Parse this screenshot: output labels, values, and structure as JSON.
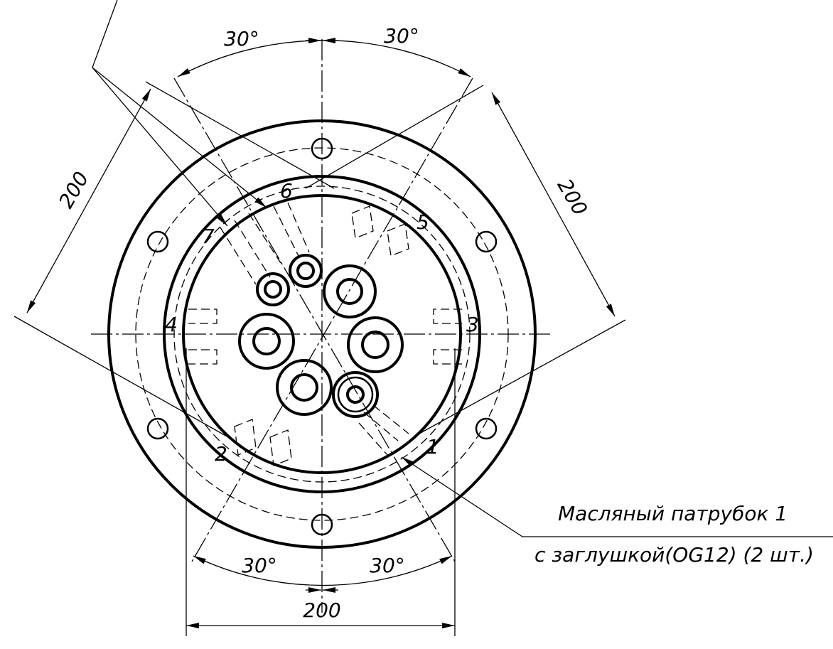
{
  "angle_dimensions": [
    "30°",
    "30°",
    "30°",
    "30°"
  ],
  "length_dimensions": [
    "200",
    "200",
    "200"
  ],
  "port_numbers": [
    "1",
    "2",
    "3",
    "4",
    "5",
    "6",
    "7"
  ],
  "annotation": {
    "line1": "Масляный патрубок 1",
    "line2": "с заглушкой(OG12) (2 шт.)"
  }
}
